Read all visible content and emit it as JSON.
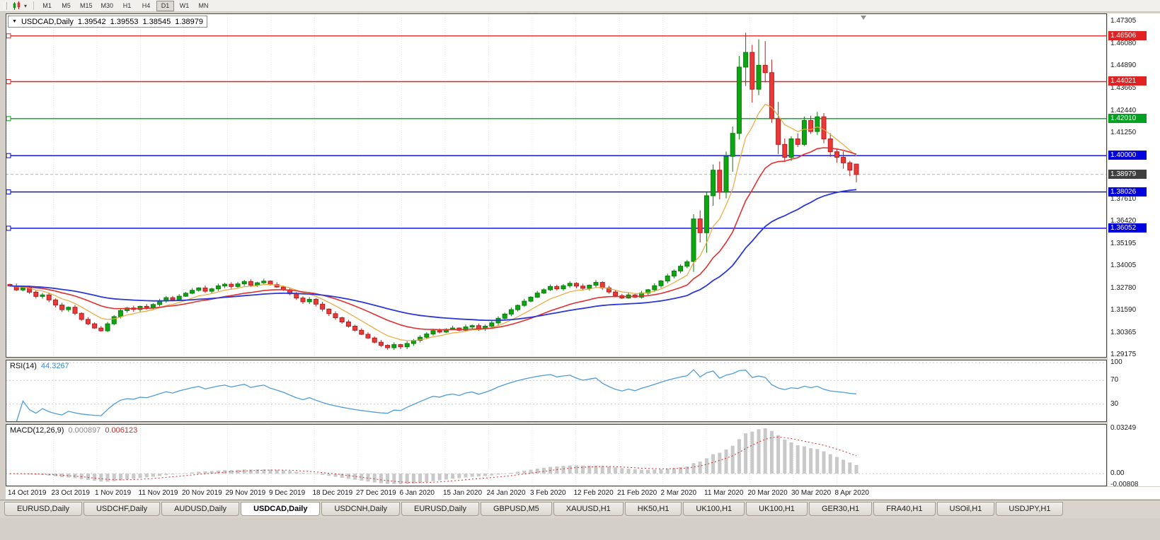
{
  "toolbar": {
    "timeframes": [
      "M1",
      "M5",
      "M15",
      "M30",
      "H1",
      "H4",
      "D1",
      "W1",
      "MN"
    ],
    "active_timeframe": "D1"
  },
  "symbol_bar": {
    "symbol": "USDCAD,Daily",
    "open": "1.39542",
    "high": "1.39553",
    "low": "1.38545",
    "close": "1.38979"
  },
  "chart_data": {
    "type": "candlestick",
    "symbol": "USDCAD",
    "timeframe": "Daily",
    "price_axis": {
      "max": 1.47305,
      "min": 1.29175,
      "ticks": [
        "1.47305",
        "1.46080",
        "1.44890",
        "1.43665",
        "1.42440",
        "1.41250",
        "1.37610",
        "1.36420",
        "1.35195",
        "1.34005",
        "1.32780",
        "1.31590",
        "1.30365",
        "1.29175"
      ]
    },
    "horizontal_lines": [
      {
        "price": 1.46506,
        "label": "1.46506",
        "color": "#e02222",
        "role": "resistance"
      },
      {
        "price": 1.44021,
        "label": "1.44021",
        "color": "#e02222",
        "role": "resistance"
      },
      {
        "price": 1.4201,
        "label": "1.42010",
        "color": "#00a020",
        "role": "pivot"
      },
      {
        "price": 1.4,
        "label": "1.40000",
        "color": "#0000dd",
        "role": "support"
      },
      {
        "price": 1.38026,
        "label": "1.38026",
        "color": "#0000dd",
        "role": "support"
      },
      {
        "price": 1.36052,
        "label": "1.36052",
        "color": "#0000dd",
        "role": "support"
      }
    ],
    "current_price": {
      "value": 1.38979,
      "label": "1.38979",
      "badge_color": "#3f3f3f"
    },
    "first_open": 1.33,
    "closes": [
      1.3292,
      1.327,
      1.3282,
      1.3258,
      1.3235,
      1.3243,
      1.3216,
      1.3188,
      1.3163,
      1.3176,
      1.3143,
      1.311,
      1.3086,
      1.3063,
      1.3048,
      1.3086,
      1.3125,
      1.3158,
      1.3172,
      1.3164,
      1.3181,
      1.3175,
      1.3191,
      1.321,
      1.3228,
      1.3216,
      1.3236,
      1.3252,
      1.3268,
      1.3281,
      1.3263,
      1.3276,
      1.3292,
      1.3301,
      1.3289,
      1.3303,
      1.3316,
      1.3296,
      1.3309,
      1.3318,
      1.3299,
      1.3286,
      1.3271,
      1.3249,
      1.3226,
      1.3206,
      1.3219,
      1.3193,
      1.3166,
      1.3141,
      1.3119,
      1.3096,
      1.3073,
      1.3051,
      1.3029,
      1.3009,
      1.2986,
      1.2969,
      1.2956,
      1.2973,
      1.2961,
      1.2979,
      1.2996,
      1.3013,
      1.3031,
      1.3049,
      1.3041,
      1.3056,
      1.3063,
      1.3051,
      1.3069,
      1.3076,
      1.3059,
      1.3073,
      1.3091,
      1.3116,
      1.3139,
      1.3163,
      1.3186,
      1.3209,
      1.3231,
      1.3253,
      1.3271,
      1.3289,
      1.3276,
      1.3293,
      1.3306,
      1.3291,
      1.3279,
      1.3296,
      1.3311,
      1.3281,
      1.3259,
      1.3239,
      1.3226,
      1.3243,
      1.3231,
      1.3253,
      1.3271,
      1.3293,
      1.3319,
      1.3346,
      1.3373,
      1.3399,
      1.3423,
      1.3656,
      1.3581,
      1.3782,
      1.3921,
      1.3801,
      1.3996,
      1.4121,
      1.4481,
      1.4561,
      1.4361,
      1.4491,
      1.4451,
      1.4201,
      1.4061,
      1.3991,
      1.4091,
      1.4061,
      1.4191,
      1.4131,
      1.4211,
      1.4091,
      1.4021,
      1.3991,
      1.3961,
      1.3921,
      1.38979
    ],
    "candle_overrides": {
      "105": [
        1.3425,
        1.3682,
        1.3368,
        1.3656
      ],
      "106": [
        1.3656,
        1.3702,
        1.3528,
        1.3581
      ],
      "107": [
        1.3581,
        1.3802,
        1.3472,
        1.3782
      ],
      "108": [
        1.3782,
        1.3952,
        1.3728,
        1.3921
      ],
      "109": [
        1.3921,
        1.3968,
        1.3762,
        1.3801
      ],
      "110": [
        1.3801,
        1.4022,
        1.3768,
        1.3996
      ],
      "111": [
        1.3996,
        1.4158,
        1.3912,
        1.4121
      ],
      "112": [
        1.4121,
        1.4542,
        1.4088,
        1.4481
      ],
      "113": [
        1.4481,
        1.4668,
        1.4378,
        1.4561
      ],
      "114": [
        1.4561,
        1.4602,
        1.4288,
        1.4361
      ],
      "115": [
        1.4361,
        1.4632,
        1.4328,
        1.4491
      ],
      "116": [
        1.4491,
        1.4622,
        1.4398,
        1.4451
      ],
      "117": [
        1.4451,
        1.4522,
        1.4178,
        1.4201
      ],
      "118": [
        1.4201,
        1.4292,
        1.4008,
        1.4061
      ],
      "130": [
        1.39542,
        1.39553,
        1.38545,
        1.38979
      ]
    },
    "moving_averages": [
      {
        "name": "fast-ma",
        "period": 8,
        "color": "#efa73a",
        "width": 1.2
      },
      {
        "name": "medium-ma",
        "period": 20,
        "color": "#e03030",
        "width": 1.6
      },
      {
        "name": "slow-ma",
        "period": 45,
        "color": "#2b38d8",
        "width": 1.8
      }
    ],
    "x_axis_dates": [
      "14 Oct 2019",
      "23 Oct 2019",
      "1 Nov 2019",
      "11 Nov 2019",
      "20 Nov 2019",
      "29 Nov 2019",
      "9 Dec 2019",
      "18 Dec 2019",
      "27 Dec 2019",
      "6 Jan 2020",
      "15 Jan 2020",
      "24 Jan 2020",
      "3 Feb 2020",
      "12 Feb 2020",
      "21 Feb 2020",
      "2 Mar 2020",
      "11 Mar 2020",
      "20 Mar 2020",
      "30 Mar 2020",
      "8 Apr 2020"
    ]
  },
  "rsi_panel": {
    "name": "RSI(14)",
    "value": "44.3267",
    "period": 14,
    "line_color": "#4f9cd8",
    "levels": [
      {
        "label": "100",
        "value": 100
      },
      {
        "label": "70",
        "value": 70
      },
      {
        "label": "30",
        "value": 30
      }
    ]
  },
  "macd_panel": {
    "name": "MACD(12,26,9)",
    "macd_value": "0.000897",
    "signal_value": "0.006123",
    "axis_max": 0.03249,
    "axis_min": -0.00808,
    "histogram_color": "#c9c9c9",
    "signal_color": "#d43030",
    "axis": [
      {
        "label": "0.03249",
        "value": 0.03249
      },
      {
        "label": "0.00",
        "value": 0
      },
      {
        "label": "-0.00808",
        "value": -0.00808
      }
    ]
  },
  "tabs": {
    "items": [
      "EURUSD,Daily",
      "USDCHF,Daily",
      "AUDUSD,Daily",
      "USDCAD,Daily",
      "USDCNH,Daily",
      "EURUSD,Daily",
      "GBPUSD,M5",
      "XAUUSD,H1",
      "HK50,H1",
      "UK100,H1",
      "UK100,H1",
      "GER30,H1",
      "FRA40,H1",
      "USOil,H1",
      "USDJPY,H1"
    ],
    "active_index": 3
  },
  "colors": {
    "up_candle": "#0da512",
    "up_stroke": "#0a7d0c",
    "down_candle": "#e93939",
    "down_stroke": "#b31f1f",
    "grid": "#e4e4e4",
    "frame": "#4a4a4a"
  }
}
